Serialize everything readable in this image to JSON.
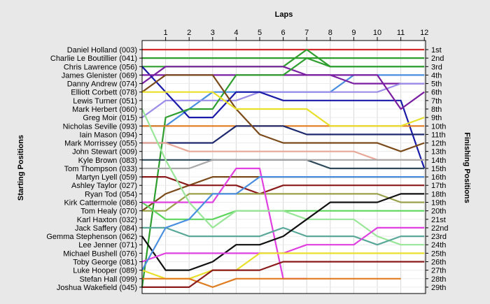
{
  "chart_data": {
    "type": "line",
    "title": "",
    "x_axis_label": "Laps",
    "y_axis_left_label": "Starting Positions",
    "y_axis_right_label": "Finishing Positions",
    "laps": [
      1,
      2,
      3,
      4,
      5,
      6,
      7,
      8,
      9,
      10,
      11,
      12
    ],
    "x_tick_labels": [
      "1",
      "2",
      "3",
      "4",
      "5",
      "6",
      "7",
      "8",
      "9",
      "10",
      "11",
      "12"
    ],
    "ylim": [
      1,
      29
    ],
    "grid": true,
    "starting_labels": [
      "Daniel Holland (003)",
      "Charlie Le Boutillier (041)",
      "Chris Lawrence (056)",
      "James Glenister (069)",
      "Danny Andrew (074)",
      "Elliott Corbett (078)",
      "Lewis Turner (051)",
      "Mark Herbert (060)",
      "Greg Moir (015)",
      "Nicholas Seville (093)",
      "Iain Mason (094)",
      "Mark Morrissey (055)",
      "John Stewart (009)",
      "Kyle Brown (083)",
      "Tom Thompson (033)",
      "Martyn Lyell (059)",
      "Ashley Taylor (027)",
      "Ryan Tod (054)",
      "Kirk Cattermole (086)",
      "Tom Healy (070)",
      "Karl Haxton (032)",
      "Jack Saffery (084)",
      "Gemma Stephenson (062)",
      "Lee Jenner (071)",
      "Michael Bushell (076)",
      "Toby George (081)",
      "Luke Hooper (089)",
      "Stefan Hall (099)",
      "Joshua Wakefield (045)"
    ],
    "finishing_labels": [
      "1st",
      "2nd",
      "3rd",
      "4th",
      "5th",
      "6th",
      "7th",
      "8th",
      "9th",
      "10th",
      "11th",
      "12th",
      "13th",
      "14th",
      "15th",
      "16th",
      "17th",
      "18th",
      "19th",
      "20th",
      "21st",
      "22nd",
      "23rd",
      "24th",
      "25th",
      "26th",
      "27th",
      "28th",
      "29th"
    ],
    "series": [
      {
        "name": "Daniel Holland (003)",
        "color": "#d42a2a",
        "positions": [
          1,
          1,
          1,
          1,
          1,
          1,
          1,
          1,
          1,
          1,
          1,
          1,
          1
        ]
      },
      {
        "name": "Charlie Le Boutillier (041)",
        "color": "#2e9e2e",
        "positions": [
          2,
          2,
          2,
          2,
          2,
          2,
          2,
          2,
          2,
          2,
          2,
          2,
          2
        ]
      },
      {
        "name": "Chris Lawrence (056)",
        "color": "#2e9e2e",
        "positions": [
          3,
          3,
          3,
          3,
          3,
          3,
          3,
          1,
          3,
          3,
          3,
          3,
          3
        ]
      },
      {
        "name": "James Glenister (069)",
        "color": "#4a8ee0",
        "positions": [
          10,
          10,
          8,
          6,
          6,
          6,
          6,
          6,
          6,
          4,
          4,
          4,
          4
        ]
      },
      {
        "name": "Danny Andrew (074)",
        "color": "#7b1fa2",
        "positions": [
          5,
          3,
          3,
          3,
          3,
          3,
          3,
          4,
          4,
          5,
          5,
          5,
          5
        ]
      },
      {
        "name": "Elliott Corbett (078)",
        "color": "#9b8ee8",
        "positions": [
          9,
          7,
          7,
          7,
          7,
          6,
          6,
          6,
          6,
          6,
          6,
          5,
          5
        ]
      },
      {
        "name": "Lewis Turner (051)",
        "color": "#1a1aa8",
        "positions": [
          3,
          6,
          9,
          9,
          6,
          6,
          7,
          7,
          7,
          7,
          7,
          7,
          15
        ]
      },
      {
        "name": "Mark Herbert (060)",
        "color": "#7b1fa2",
        "positions": [
          4,
          4,
          4,
          4,
          4,
          4,
          4,
          4,
          4,
          4,
          4,
          8,
          6
        ]
      },
      {
        "name": "Greg Moir (015)",
        "color": "#2e9e2e",
        "positions": [
          29,
          9,
          8,
          8,
          4,
          4,
          4,
          2,
          3,
          3,
          3,
          3,
          3
        ]
      },
      {
        "name": "Nicholas Seville (093)",
        "color": "#e07b20",
        "positions": [
          10,
          10,
          10,
          10,
          10,
          10,
          10,
          10,
          10,
          10,
          10,
          10,
          10
        ]
      },
      {
        "name": "Iain Mason (094)",
        "color": "#1f2a6e",
        "positions": [
          12,
          12,
          12,
          12,
          10,
          10,
          10,
          11,
          11,
          11,
          11,
          11,
          11
        ]
      },
      {
        "name": "Mark Morrissey (055)",
        "color": "#7a4a1a",
        "positions": [
          6,
          4,
          4,
          4,
          8,
          11,
          12,
          12,
          12,
          12,
          12,
          13,
          12
        ]
      },
      {
        "name": "John Stewart (009)",
        "color": "#2e4a5a",
        "positions": [
          14,
          14,
          14,
          14,
          14,
          14,
          14,
          14,
          15,
          15,
          15,
          15,
          15
        ]
      },
      {
        "name": "Kyle Brown (083)",
        "color": "#e8a898",
        "positions": [
          12,
          12,
          13,
          13,
          13,
          13,
          13,
          13,
          13,
          13,
          14,
          14,
          14
        ]
      },
      {
        "name": "Tom Thompson (033)",
        "color": "#a8a8a8",
        "positions": [
          15,
          15,
          15,
          14,
          14,
          14,
          14,
          14,
          14,
          14,
          14,
          14,
          14
        ]
      },
      {
        "name": "Martyn Lyell (059)",
        "color": "#e8e02a",
        "positions": [
          6,
          6,
          6,
          6,
          8,
          8,
          8,
          8,
          10,
          10,
          10,
          10,
          9
        ]
      },
      {
        "name": "Ashley Taylor (027)",
        "color": "#7a4a1a",
        "positions": [
          20,
          18,
          17,
          16,
          16,
          16,
          16,
          16,
          16,
          16,
          16,
          16,
          16
        ]
      },
      {
        "name": "Ryan Tod (054)",
        "color": "#8b1a1a",
        "positions": [
          16,
          16,
          17,
          17,
          17,
          18,
          17,
          17,
          17,
          17,
          17,
          17,
          17
        ]
      },
      {
        "name": "Kirk Cattermole (086)",
        "color": "#9aa04a",
        "positions": [
          20,
          20,
          18,
          18,
          18,
          18,
          18,
          18,
          18,
          18,
          18,
          19,
          19
        ]
      },
      {
        "name": "Tom Healy (070)",
        "color": "#5ed65e",
        "positions": [
          19,
          21,
          21,
          21,
          20,
          20,
          20,
          20,
          20,
          20,
          20,
          20,
          20
        ]
      },
      {
        "name": "Karl Haxton (032)",
        "color": "#e040e0",
        "positions": [
          19,
          19,
          19,
          19,
          15,
          15,
          28,
          28
        ]
      },
      {
        "name": "Jack Saffery (084)",
        "color": "#99e699",
        "positions": [
          8,
          14,
          19,
          22,
          20,
          20,
          20,
          21,
          21,
          21,
          23,
          24,
          24
        ]
      },
      {
        "name": "Gemma Stephenson (062)",
        "color": "#5aa89a",
        "positions": [
          22,
          22,
          23,
          23,
          23,
          23,
          22,
          23,
          23,
          23,
          24,
          23,
          23
        ]
      },
      {
        "name": "Lee Jenner (071)",
        "color": "#101010",
        "positions": [
          23,
          27,
          27,
          26,
          24,
          24,
          23,
          21,
          19,
          19,
          19,
          18,
          18
        ]
      },
      {
        "name": "Michael Bushell (076)",
        "color": "#e040e0",
        "positions": [
          26,
          25,
          25,
          25,
          25,
          25,
          25,
          24,
          24,
          24,
          22,
          22,
          22
        ]
      },
      {
        "name": "Toby George (081)",
        "color": "#e8e02a",
        "positions": [
          27,
          28,
          28,
          27,
          27,
          25,
          25,
          25,
          25,
          25,
          25,
          25,
          25
        ]
      },
      {
        "name": "Luke Hooper (089)",
        "color": "#e07b20",
        "positions": [
          28,
          28,
          28,
          29,
          28,
          28,
          28,
          28,
          28,
          28,
          28,
          28
        ]
      },
      {
        "name": "Stefan Hall (099)",
        "color": "#4a8ee0",
        "positions": [
          27,
          22,
          21,
          18,
          18,
          16,
          16,
          16,
          16,
          16,
          16,
          16,
          16
        ]
      },
      {
        "name": "Joshua Wakefield (045)",
        "color": "#8b1a1a",
        "positions": [
          29,
          29,
          29,
          27,
          27,
          27,
          26,
          26,
          26,
          26,
          26,
          26,
          26
        ]
      }
    ]
  }
}
